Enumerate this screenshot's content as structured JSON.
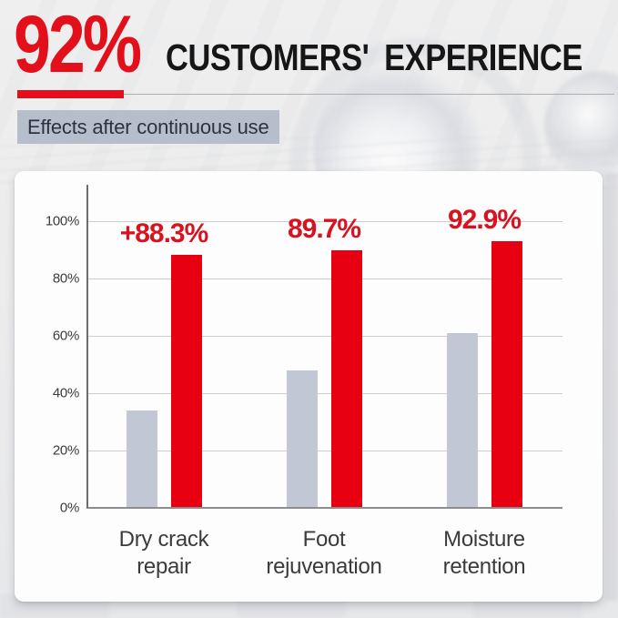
{
  "header": {
    "stat": "92%",
    "title": "CUSTOMERS' EXPERIENCE",
    "subtitle": "Effects after continuous use"
  },
  "colors": {
    "header_red": "#e3101b",
    "bar_red": "#e60012",
    "bar_gray": "#c1c7d5",
    "value_label_red": "#d8121e",
    "subtitle_bg": "#b7becb",
    "subtitle_text": "#2b3343",
    "title_text": "#161616",
    "axis_text": "#3c3c3c",
    "category_text": "#3b3b3b"
  },
  "chart_data": {
    "type": "bar",
    "title": "Effects after continuous use",
    "categories": [
      "Dry crack repair",
      "Foot rejuvenation",
      "Moisture retention"
    ],
    "series": [
      {
        "name": "gray",
        "values": [
          34,
          48,
          61
        ],
        "color": "#c1c7d5"
      },
      {
        "name": "red",
        "values": [
          88.3,
          89.7,
          92.9
        ],
        "color": "#e60012"
      }
    ],
    "value_labels": [
      "+88.3%",
      "89.7%",
      "92.9%"
    ],
    "y_ticks": [
      "0%",
      "20%",
      "40%",
      "60%",
      "80%",
      "100%"
    ],
    "ylim": [
      0,
      100
    ],
    "grid": true,
    "legend_position": "none"
  }
}
